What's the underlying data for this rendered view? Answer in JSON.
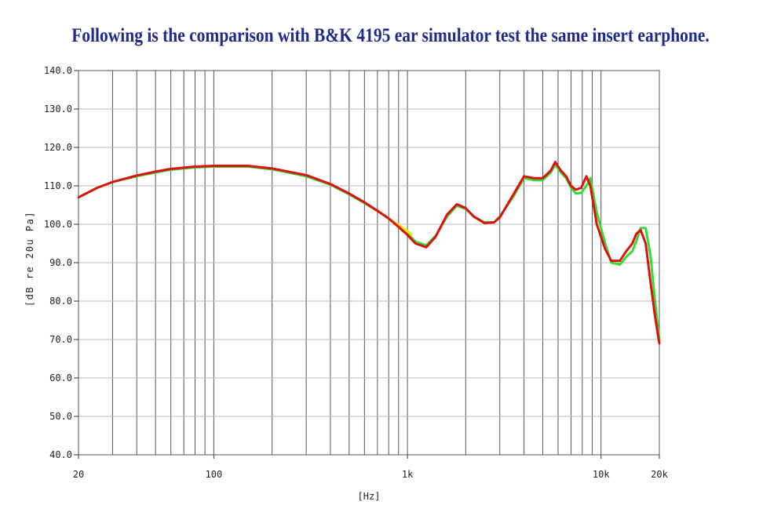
{
  "heading": "Following is the comparison with B&K 4195 ear simulator test the same insert earphone.",
  "chart_data": {
    "type": "line",
    "xscale": "log",
    "xlim": [
      20,
      20000
    ],
    "ylim": [
      40,
      140
    ],
    "grid": true,
    "xlabel": "[Hz]",
    "ylabel": "[dB re 20u Pa]",
    "x_ticks": [
      {
        "value": 20,
        "label": "20"
      },
      {
        "value": 100,
        "label": "100"
      },
      {
        "value": 1000,
        "label": "1k"
      },
      {
        "value": 10000,
        "label": "10k"
      },
      {
        "value": 20000,
        "label": "20k"
      }
    ],
    "y_ticks": [
      {
        "value": 40,
        "label": "40.0"
      },
      {
        "value": 50,
        "label": "50.0"
      },
      {
        "value": 60,
        "label": "60.0"
      },
      {
        "value": 70,
        "label": "70.0"
      },
      {
        "value": 80,
        "label": "80.0"
      },
      {
        "value": 90,
        "label": "90.0"
      },
      {
        "value": 100,
        "label": "100.0"
      },
      {
        "value": 110,
        "label": "110.0"
      },
      {
        "value": 120,
        "label": "120.0"
      },
      {
        "value": 130,
        "label": "130.0"
      },
      {
        "value": 140,
        "label": "140.0"
      }
    ],
    "series": [
      {
        "color": "#33dd33",
        "x": [
          20,
          25,
          30,
          40,
          50,
          60,
          80,
          100,
          150,
          200,
          300,
          400,
          500,
          600,
          700,
          800,
          900,
          1000,
          1100,
          1250,
          1400,
          1600,
          1800,
          2000,
          2200,
          2500,
          2800,
          3000,
          3500,
          4000,
          4500,
          5000,
          5500,
          5800,
          6200,
          6600,
          7000,
          7400,
          7900,
          8400,
          8800,
          9500,
          10500,
          11300,
          12500,
          13500,
          14500,
          15200,
          16000,
          17000,
          18000,
          19000,
          20000
        ],
        "y": [
          107,
          109.5,
          111,
          112.5,
          113.5,
          114.2,
          114.8,
          115,
          115,
          114.3,
          112.5,
          110.3,
          107.8,
          105.5,
          103.5,
          101.5,
          99.5,
          97.5,
          95.5,
          94.5,
          97,
          102,
          104.8,
          104,
          102,
          100.5,
          100.5,
          102,
          107,
          112,
          111.5,
          111.5,
          113.5,
          115.5,
          113.5,
          112,
          109.5,
          108,
          108.2,
          110,
          112,
          103,
          95,
          90,
          89.5,
          91.5,
          93,
          95.5,
          99,
          99,
          92,
          80,
          70
        ]
      },
      {
        "color": "#e8e800",
        "x": [
          800,
          900,
          1000,
          1050
        ],
        "y": [
          101.5,
          99.8,
          98.2,
          97.3
        ]
      },
      {
        "color": "#dd1111",
        "x": [
          20,
          25,
          30,
          40,
          50,
          60,
          80,
          100,
          150,
          200,
          300,
          400,
          500,
          600,
          700,
          800,
          900,
          1000,
          1100,
          1250,
          1400,
          1600,
          1800,
          2000,
          2200,
          2500,
          2800,
          3000,
          3500,
          4000,
          4500,
          5000,
          5500,
          5800,
          6200,
          6600,
          7000,
          7400,
          7900,
          8400,
          8800,
          9500,
          10500,
          11300,
          12500,
          13500,
          14500,
          15200,
          16000,
          17000,
          18000,
          19000,
          20000
        ],
        "y": [
          107,
          109.5,
          111,
          112.7,
          113.7,
          114.4,
          115,
          115.2,
          115.2,
          114.5,
          112.8,
          110.5,
          108,
          105.7,
          103.5,
          101.5,
          99.3,
          97.2,
          95,
          94,
          96.8,
          102.5,
          105.2,
          104.2,
          102,
          100.3,
          100.5,
          101.8,
          107.5,
          112.5,
          112,
          112,
          114,
          116.2,
          114,
          112.5,
          110,
          109,
          109.5,
          112.5,
          110,
          100,
          93.5,
          90.5,
          90.5,
          93,
          95,
          97.5,
          98.5,
          95,
          85,
          76,
          69
        ]
      }
    ]
  }
}
